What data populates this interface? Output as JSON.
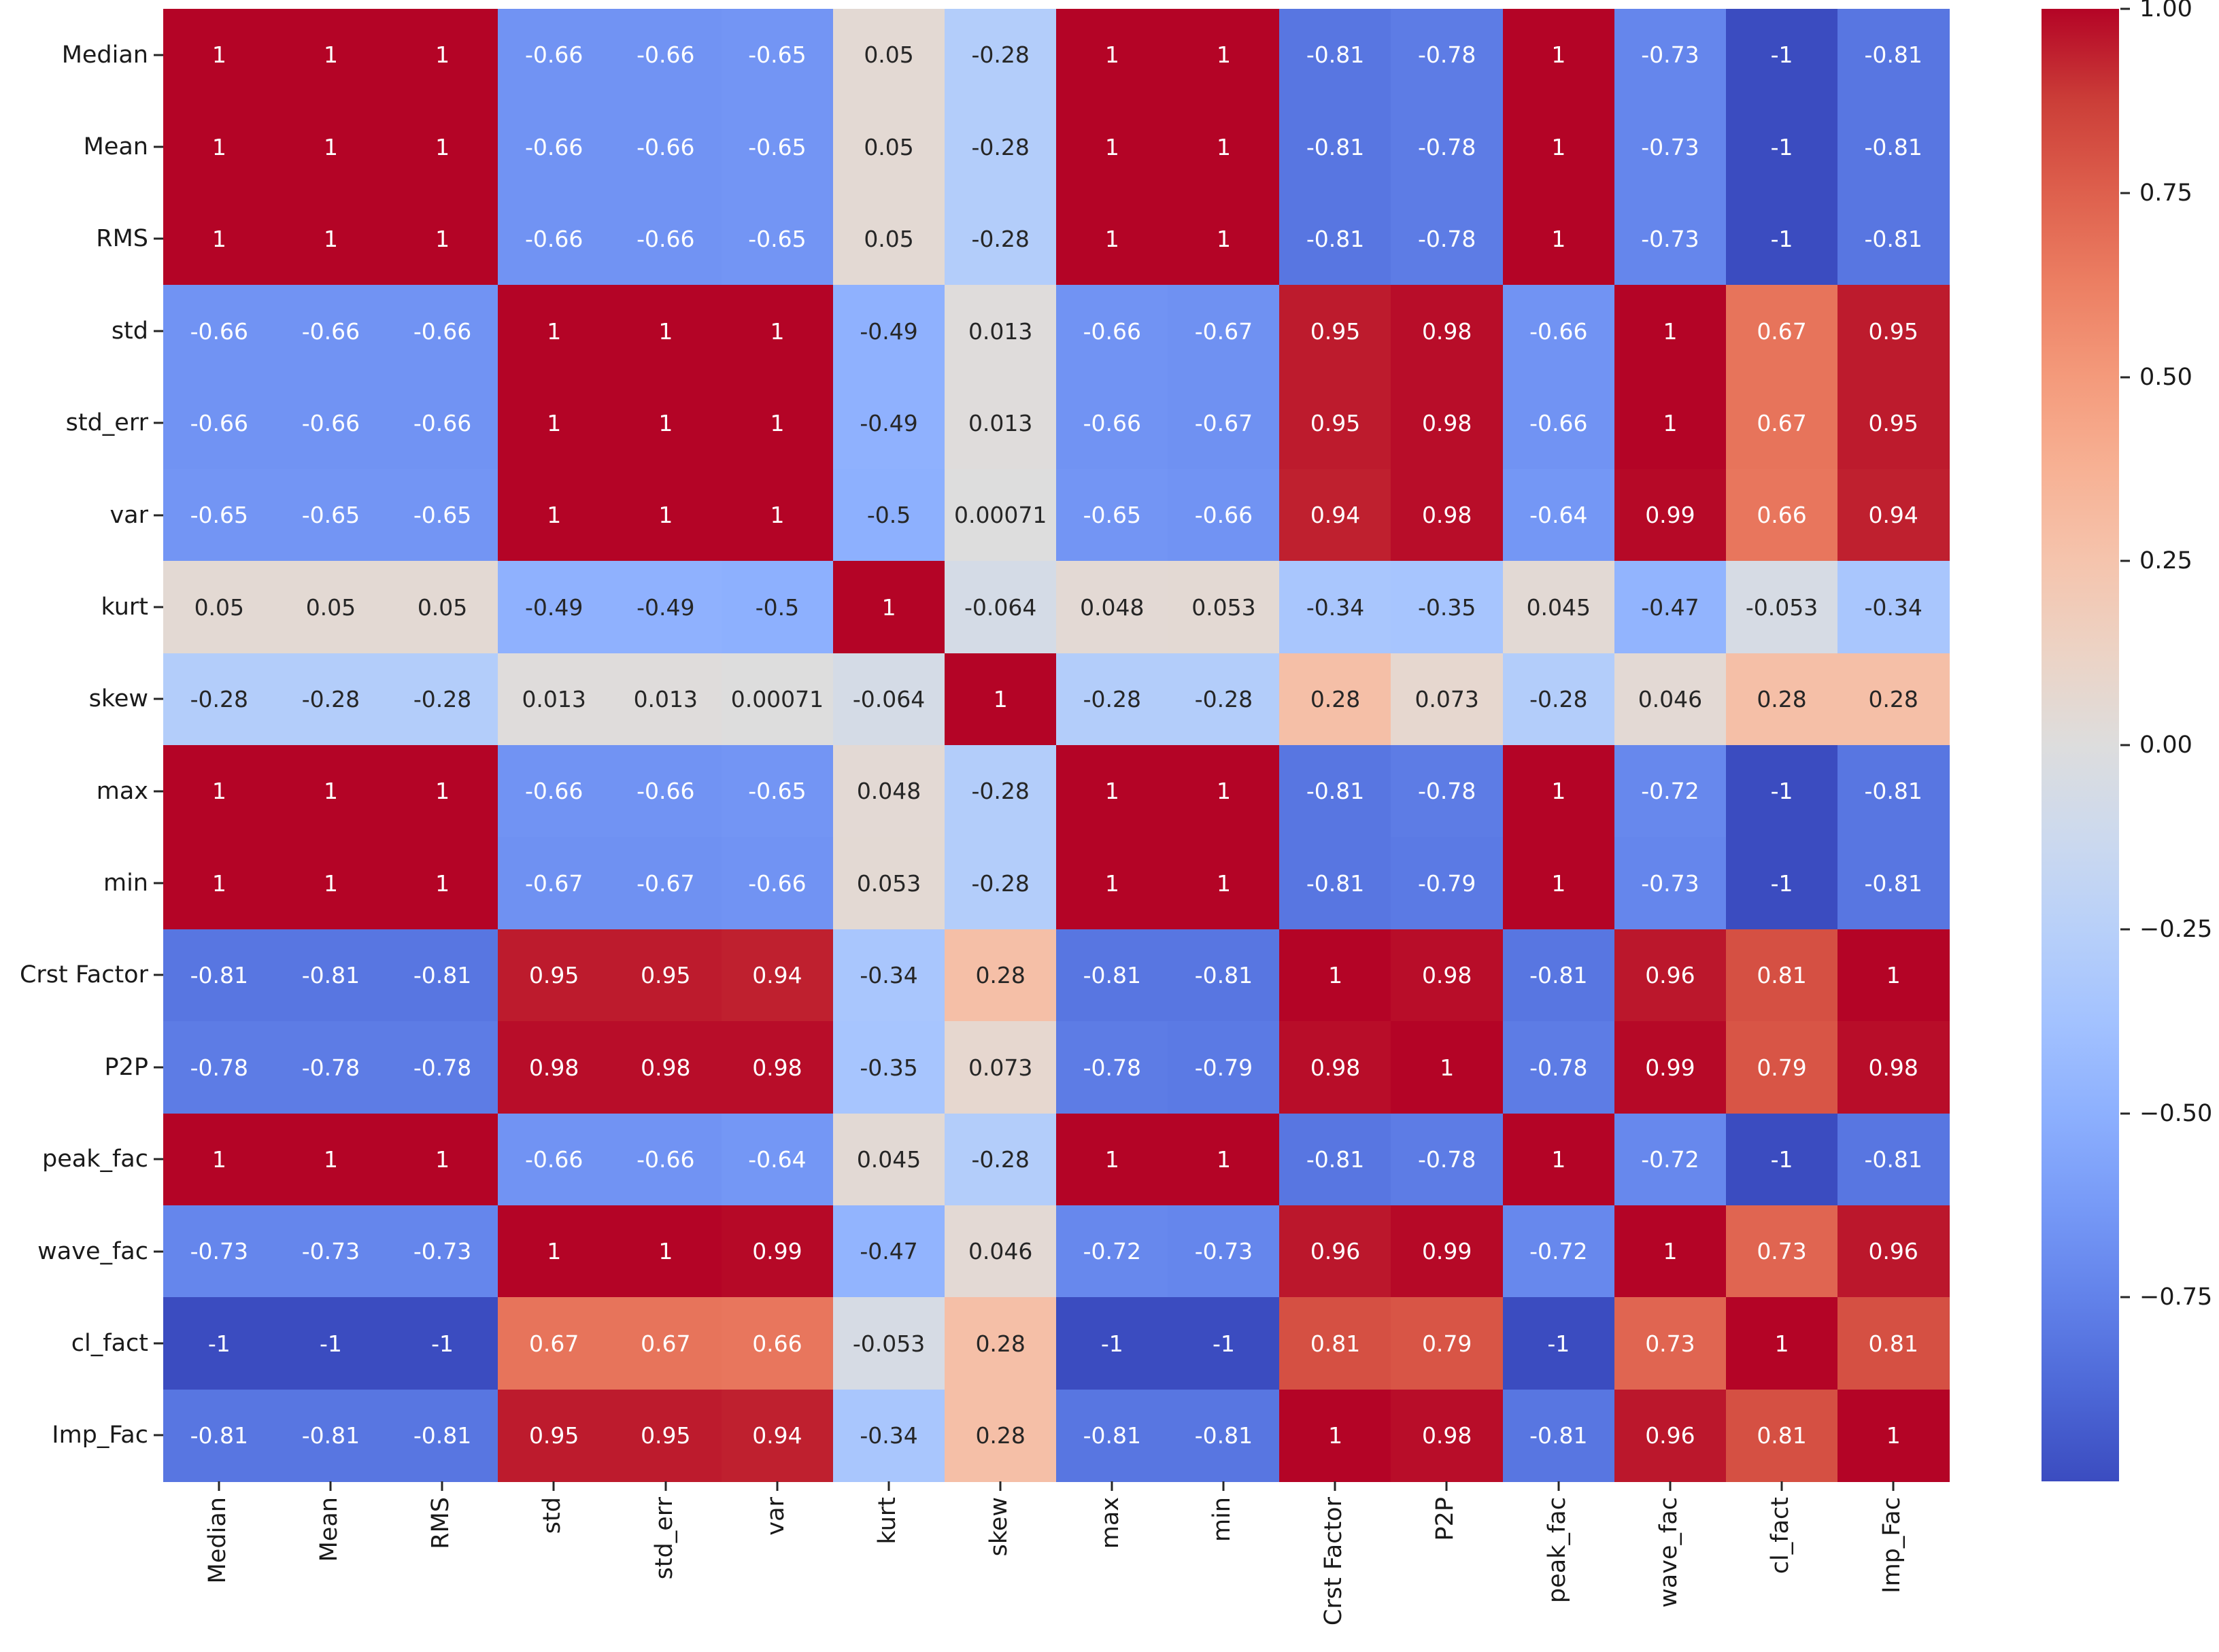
{
  "figure": {
    "background": "#ffffff"
  },
  "chart_data": {
    "type": "heatmap",
    "title": "",
    "xlabel": "",
    "ylabel": "",
    "x_labels": [
      "Median",
      "Mean",
      "RMS",
      "std",
      "std_err",
      "var",
      "kurt",
      "skew",
      "max",
      "min",
      "Crst Factor",
      "P2P",
      "peak_fac",
      "wave_fac",
      "cl_fact",
      "Imp_Fac"
    ],
    "y_labels": [
      "Median",
      "Mean",
      "RMS",
      "std",
      "std_err",
      "var",
      "kurt",
      "skew",
      "max",
      "min",
      "Crst Factor",
      "P2P",
      "peak_fac",
      "wave_fac",
      "cl_fact",
      "Imp_Fac"
    ],
    "values": [
      [
        1,
        1,
        1,
        -0.66,
        -0.66,
        -0.65,
        0.05,
        -0.28,
        1,
        1,
        -0.81,
        -0.78,
        1,
        -0.73,
        -1,
        -0.81
      ],
      [
        1,
        1,
        1,
        -0.66,
        -0.66,
        -0.65,
        0.05,
        -0.28,
        1,
        1,
        -0.81,
        -0.78,
        1,
        -0.73,
        -1,
        -0.81
      ],
      [
        1,
        1,
        1,
        -0.66,
        -0.66,
        -0.65,
        0.05,
        -0.28,
        1,
        1,
        -0.81,
        -0.78,
        1,
        -0.73,
        -1,
        -0.81
      ],
      [
        -0.66,
        -0.66,
        -0.66,
        1,
        1,
        1,
        -0.49,
        0.013,
        -0.66,
        -0.67,
        0.95,
        0.98,
        -0.66,
        1,
        0.67,
        0.95
      ],
      [
        -0.66,
        -0.66,
        -0.66,
        1,
        1,
        1,
        -0.49,
        0.013,
        -0.66,
        -0.67,
        0.95,
        0.98,
        -0.66,
        1,
        0.67,
        0.95
      ],
      [
        -0.65,
        -0.65,
        -0.65,
        1,
        1,
        1,
        -0.5,
        0.00071,
        -0.65,
        -0.66,
        0.94,
        0.98,
        -0.64,
        0.99,
        0.66,
        0.94
      ],
      [
        0.05,
        0.05,
        0.05,
        -0.49,
        -0.49,
        -0.5,
        1,
        -0.064,
        0.048,
        0.053,
        -0.34,
        -0.35,
        0.045,
        -0.47,
        -0.053,
        -0.34
      ],
      [
        -0.28,
        -0.28,
        -0.28,
        0.013,
        0.013,
        0.00071,
        -0.064,
        1,
        -0.28,
        -0.28,
        0.28,
        0.073,
        -0.28,
        0.046,
        0.28,
        0.28
      ],
      [
        1,
        1,
        1,
        -0.66,
        -0.66,
        -0.65,
        0.048,
        -0.28,
        1,
        1,
        -0.81,
        -0.78,
        1,
        -0.72,
        -1,
        -0.81
      ],
      [
        1,
        1,
        1,
        -0.67,
        -0.67,
        -0.66,
        0.053,
        -0.28,
        1,
        1,
        -0.81,
        -0.79,
        1,
        -0.73,
        -1,
        -0.81
      ],
      [
        -0.81,
        -0.81,
        -0.81,
        0.95,
        0.95,
        0.94,
        -0.34,
        0.28,
        -0.81,
        -0.81,
        1,
        0.98,
        -0.81,
        0.96,
        0.81,
        1
      ],
      [
        -0.78,
        -0.78,
        -0.78,
        0.98,
        0.98,
        0.98,
        -0.35,
        0.073,
        -0.78,
        -0.79,
        0.98,
        1,
        -0.78,
        0.99,
        0.79,
        0.98
      ],
      [
        1,
        1,
        1,
        -0.66,
        -0.66,
        -0.64,
        0.045,
        -0.28,
        1,
        1,
        -0.81,
        -0.78,
        1,
        -0.72,
        -1,
        -0.81
      ],
      [
        -0.73,
        -0.73,
        -0.73,
        1,
        1,
        0.99,
        -0.47,
        0.046,
        -0.72,
        -0.73,
        0.96,
        0.99,
        -0.72,
        1,
        0.73,
        0.96
      ],
      [
        -1,
        -1,
        -1,
        0.67,
        0.67,
        0.66,
        -0.053,
        0.28,
        -1,
        -1,
        0.81,
        0.79,
        -1,
        0.73,
        1,
        0.81
      ],
      [
        -0.81,
        -0.81,
        -0.81,
        0.95,
        0.95,
        0.94,
        -0.34,
        0.28,
        -0.81,
        -0.81,
        1,
        0.98,
        -0.81,
        0.96,
        0.81,
        1
      ]
    ],
    "colormap": "coolwarm",
    "vmin": -1,
    "vmax": 1,
    "grid": false,
    "annotations": true,
    "annotation_text_colors": {
      "dark": "#262626",
      "light": "#ffffff"
    },
    "colormap_rgb_anchors": [
      [
        59,
        76,
        192
      ],
      [
        77,
        104,
        215
      ],
      [
        98,
        130,
        234
      ],
      [
        119,
        154,
        247
      ],
      [
        141,
        176,
        254
      ],
      [
        163,
        194,
        255
      ],
      [
        184,
        208,
        249
      ],
      [
        204,
        217,
        238
      ],
      [
        221,
        221,
        221
      ],
      [
        236,
        211,
        197
      ],
      [
        245,
        196,
        173
      ],
      [
        247,
        177,
        148
      ],
      [
        244,
        154,
        123
      ],
      [
        236,
        127,
        99
      ],
      [
        222,
        96,
        77
      ],
      [
        203,
        62,
        56
      ],
      [
        180,
        4,
        38
      ]
    ],
    "colorbar": {
      "position": "right",
      "tick_labels": [
        "1.00",
        "0.75",
        "0.50",
        "0.25",
        "0.00",
        "−0.25",
        "−0.50",
        "−0.75"
      ],
      "tick_values": [
        1,
        0.75,
        0.5,
        0.25,
        0,
        -0.25,
        -0.5,
        -0.75
      ]
    }
  }
}
